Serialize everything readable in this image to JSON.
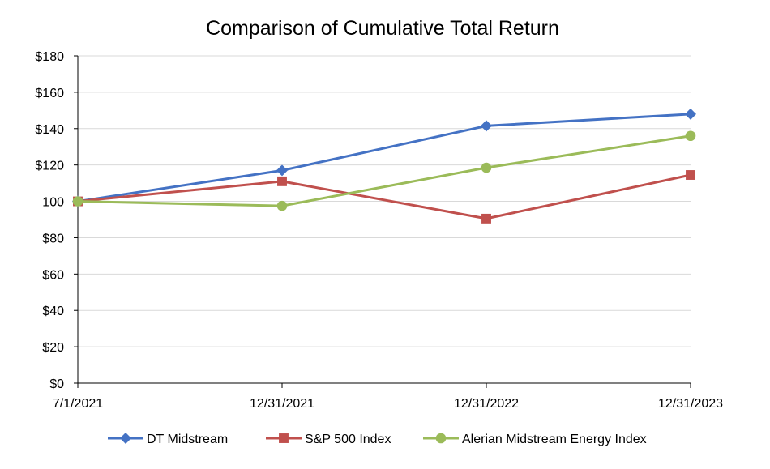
{
  "chart_data": {
    "type": "line",
    "title": "Comparison of Cumulative Total Return",
    "xlabel": "",
    "ylabel": "",
    "categories": [
      "7/1/2021",
      "12/31/2021",
      "12/31/2022",
      "12/31/2023"
    ],
    "ylim": [
      0,
      180
    ],
    "y_ticks": [
      0,
      20,
      40,
      60,
      80,
      100,
      120,
      140,
      160,
      180
    ],
    "y_tick_labels": [
      "$0",
      "$20",
      "$40",
      "$60",
      "$80",
      "100",
      "$120",
      "$140",
      "$160",
      "$180"
    ],
    "grid": true,
    "legend_position": "bottom",
    "series": [
      {
        "name": "DT Midstream",
        "values": [
          100,
          117,
          141.5,
          148
        ],
        "color": "#4472c4",
        "marker": "diamond"
      },
      {
        "name": "S&P 500 Index",
        "values": [
          100,
          111,
          90.5,
          114.5
        ],
        "color": "#c0504d",
        "marker": "square"
      },
      {
        "name": "Alerian Midstream Energy Index",
        "values": [
          100,
          97.5,
          118.5,
          136
        ],
        "color": "#9bbb59",
        "marker": "circle"
      }
    ]
  }
}
